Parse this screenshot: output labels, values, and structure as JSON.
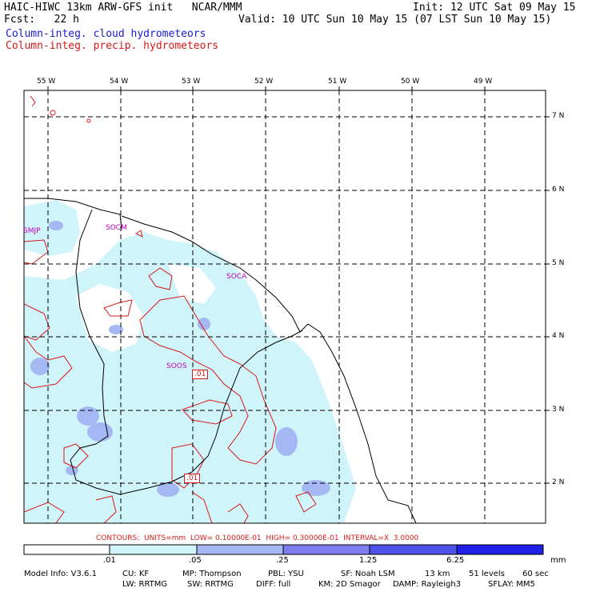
{
  "header": {
    "model_line": "HAIC-HIWC 13km ARW-GFS init   NCAR/MMM",
    "fcst_line": "Fcst:   22 h",
    "init_line": "Init: 12 UTC Sat 09 May 15",
    "valid_line": "Valid: 10 UTC Sun 10 May 15 (07 LST Sun 10 May 15)",
    "legend_cloud": "Column-integ. cloud hydrometeors",
    "legend_precip": "Column-integ. precip. hydrometeors"
  },
  "map": {
    "lon_labels": [
      "55 W",
      "54 W",
      "53 W",
      "52 W",
      "51 W",
      "50 W",
      "49 W"
    ],
    "lat_labels": [
      "7 N",
      "6 N",
      "5 N",
      "4 N",
      "3 N",
      "2 N"
    ],
    "stations": [
      "SMJP",
      "SOCM",
      "SOCA",
      "SOOS"
    ],
    "contour_labels": [
      ".01",
      ".01"
    ]
  },
  "contours_line": "CONTOURS:  UNITS=mm  LOW= 0.10000E-01  HIGH= 0.30000E-01  INTERVAL=X  3.0000",
  "colorbar": {
    "labels": [
      ".01",
      ".05",
      ".25",
      "1.25",
      "6.25"
    ],
    "unit": "mm",
    "colors": [
      "#ffffff",
      "#cff4fa",
      "#a6b8f4",
      "#7d7ef0",
      "#5050ea",
      "#2020e6"
    ]
  },
  "footer": {
    "line1": [
      "Model Info: V3.6.1",
      "CU: KF",
      "MP: Thompson",
      "PBL: YSU",
      "SF: Noah LSM",
      "13 km",
      "51 levels",
      "60 sec"
    ],
    "line2": [
      "LW: RRTMG",
      "SW: RRTMG",
      "DIFF: full",
      "KM: 2D Smagor",
      "DAMP: Rayleigh3",
      "SFLAY: MM5"
    ]
  }
}
